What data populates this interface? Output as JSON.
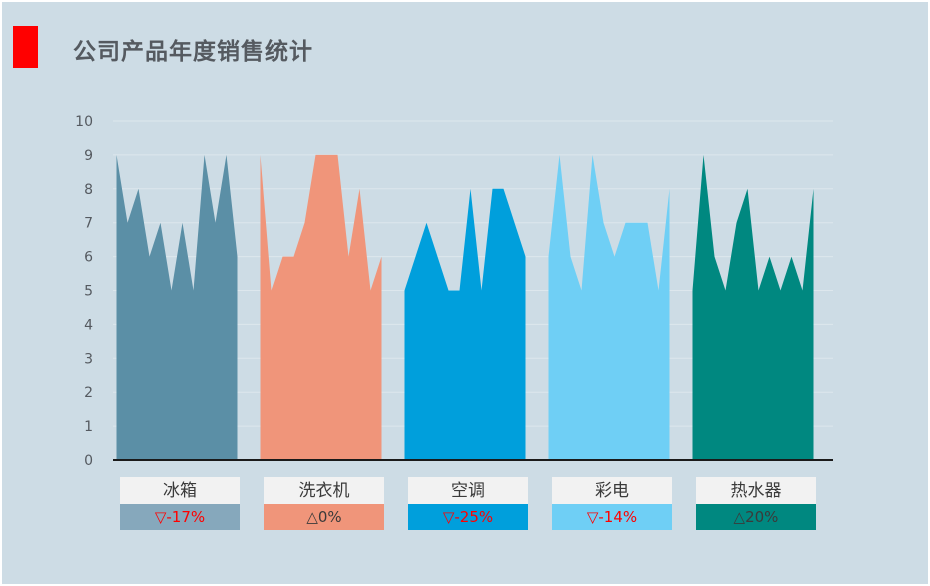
{
  "title": "公司产品年度销售统计",
  "chart_data": {
    "type": "area",
    "title": "公司产品年度销售统计",
    "ylim": [
      0,
      10
    ],
    "yticks": [
      "0",
      "1",
      "2",
      "3",
      "4",
      "5",
      "6",
      "7",
      "8",
      "9",
      "10"
    ],
    "grid": true,
    "series": [
      {
        "name": "冰箱",
        "values": [
          9,
          7,
          8,
          6,
          7,
          5,
          7,
          5,
          9,
          7,
          9,
          6
        ],
        "color": "#5b8fa6",
        "label_color": "#86a8bc",
        "change": "▽-17%",
        "change_color": "#ff0000"
      },
      {
        "name": "洗衣机",
        "values": [
          9,
          5,
          6,
          6,
          7,
          9,
          9,
          9,
          6,
          8,
          5,
          6
        ],
        "color": "#f0957a",
        "label_color": "#f0957a",
        "change": "△0%",
        "change_color": "#3a3a3a"
      },
      {
        "name": "空调",
        "values": [
          5,
          6,
          7,
          6,
          5,
          5,
          8,
          5,
          8,
          8,
          7,
          6
        ],
        "color": "#009fdc",
        "label_color": "#009fdc",
        "change": "▽-25%",
        "change_color": "#ff0000"
      },
      {
        "name": "彩电",
        "values": [
          6,
          9,
          6,
          5,
          9,
          7,
          6,
          7,
          7,
          7,
          5,
          8
        ],
        "color": "#6fcff5",
        "label_color": "#6fcff5",
        "change": "▽-14%",
        "change_color": "#ff0000"
      },
      {
        "name": "热水器",
        "values": [
          5,
          9,
          6,
          5,
          7,
          8,
          5,
          6,
          5,
          6,
          5,
          8
        ],
        "color": "#008880",
        "label_color": "#008880",
        "change": "△20%",
        "change_color": "#3a3a3a"
      }
    ]
  }
}
